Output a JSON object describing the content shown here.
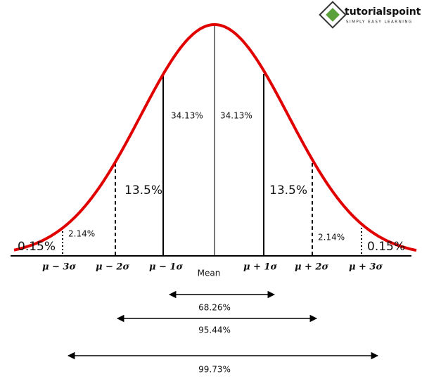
{
  "logo": {
    "name": "tutorialspoint",
    "tagline": "SIMPLY EASY LEARNING"
  },
  "area_labels": [
    "34.13%",
    "34.13%",
    "13.5%",
    "13.5%",
    "2.14%",
    "2.14%",
    "0.15%",
    "0.15%"
  ],
  "axis_labels": [
    "μ − 3σ",
    "μ − 2σ",
    "μ − 1σ",
    "μ + 1σ",
    "μ + 2σ",
    "μ + 3σ"
  ],
  "mean_label": "Mean",
  "ranges": [
    "68.26%",
    "95.44%",
    "99.73%"
  ]
}
